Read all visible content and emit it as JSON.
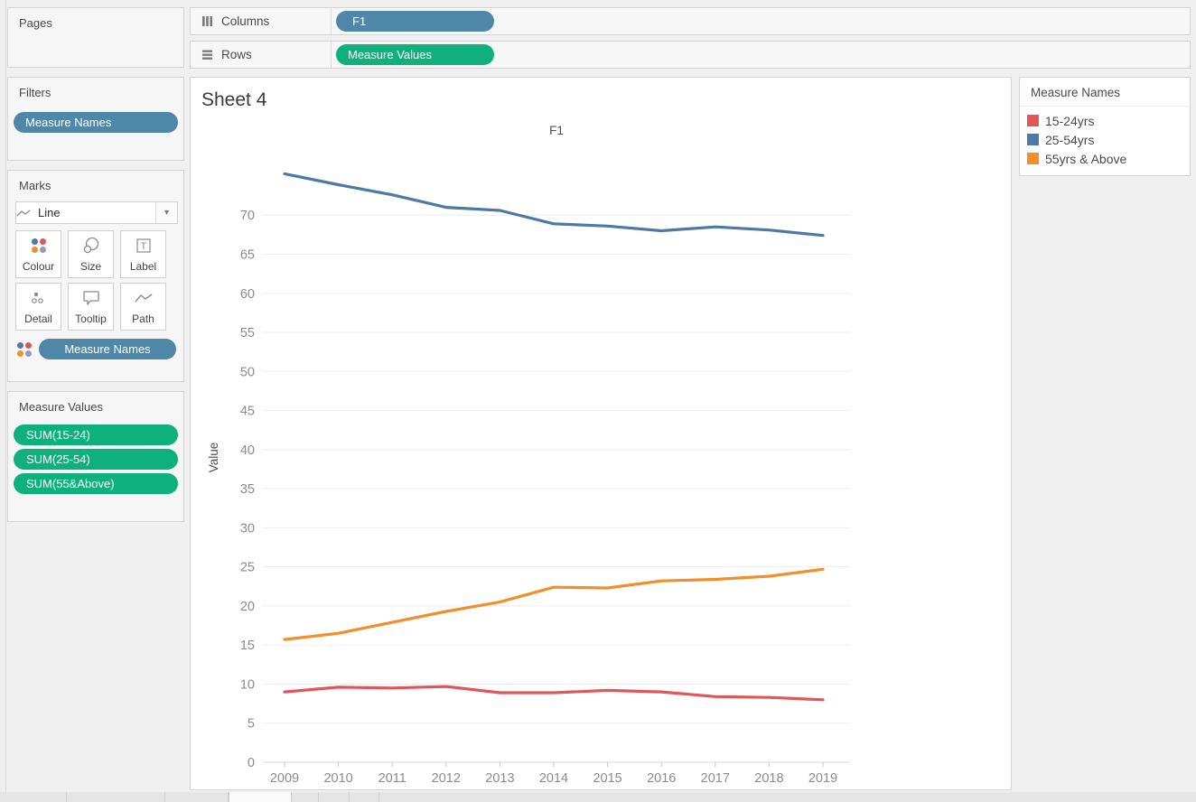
{
  "shelves": {
    "columns": {
      "label": "Columns",
      "pill": "F1"
    },
    "rows": {
      "label": "Rows",
      "pill": "Measure Values"
    }
  },
  "left_panel": {
    "pages": {
      "title": "Pages"
    },
    "filters": {
      "title": "Filters",
      "pill": "Measure Names"
    },
    "marks": {
      "title": "Marks",
      "mark_type": "Line",
      "caret": "▾",
      "buttons": {
        "colour": "Colour",
        "size": "Size",
        "label": "Label",
        "detail": "Detail",
        "tooltip": "Tooltip",
        "path": "Path"
      },
      "pill": "Measure Names"
    },
    "measure_values": {
      "title": "Measure Values",
      "pills": {
        "p1": "SUM(15-24)",
        "p2": "SUM(25-54)",
        "p3": "SUM(55&Above)"
      }
    }
  },
  "sheet": {
    "title": "Sheet 4"
  },
  "legend": {
    "title": "Measure Names",
    "items": [
      {
        "label": "15-24yrs",
        "color": "#e15759"
      },
      {
        "label": "25-54yrs",
        "color": "#4e79a7"
      },
      {
        "label": "55yrs & Above",
        "color": "#f28e2b"
      }
    ]
  },
  "colors": {
    "pill_blue": "#4f87a8",
    "pill_green": "#0eb17b",
    "series_red": "#e15759",
    "series_blue": "#4e79a7",
    "series_orange": "#f28e2b",
    "gridline": "#ededed",
    "axis_line": "#d7d7d7",
    "tick_label": "#8b8b8b"
  },
  "chart_data": {
    "type": "line",
    "title": "F1",
    "xlabel": "",
    "ylabel": "Value",
    "x": [
      2009,
      2010,
      2011,
      2012,
      2013,
      2014,
      2015,
      2016,
      2017,
      2018,
      2019
    ],
    "series": [
      {
        "name": "25-54yrs",
        "color": "#4e79a7",
        "values": [
          75.3,
          73.9,
          72.6,
          71.0,
          70.6,
          68.9,
          68.6,
          68.0,
          68.5,
          68.1,
          67.4
        ]
      },
      {
        "name": "55yrs & Above",
        "color": "#f28e2b",
        "values": [
          15.7,
          16.5,
          17.9,
          19.3,
          20.5,
          22.4,
          22.3,
          23.2,
          23.4,
          23.8,
          24.7
        ]
      },
      {
        "name": "15-24yrs",
        "color": "#e15759",
        "values": [
          9.0,
          9.6,
          9.5,
          9.7,
          8.9,
          8.9,
          9.2,
          9.0,
          8.4,
          8.3,
          8.0
        ]
      }
    ],
    "ylim": [
      0,
      78
    ],
    "ytick_step": 5,
    "grid": true,
    "legend_position": "right"
  }
}
